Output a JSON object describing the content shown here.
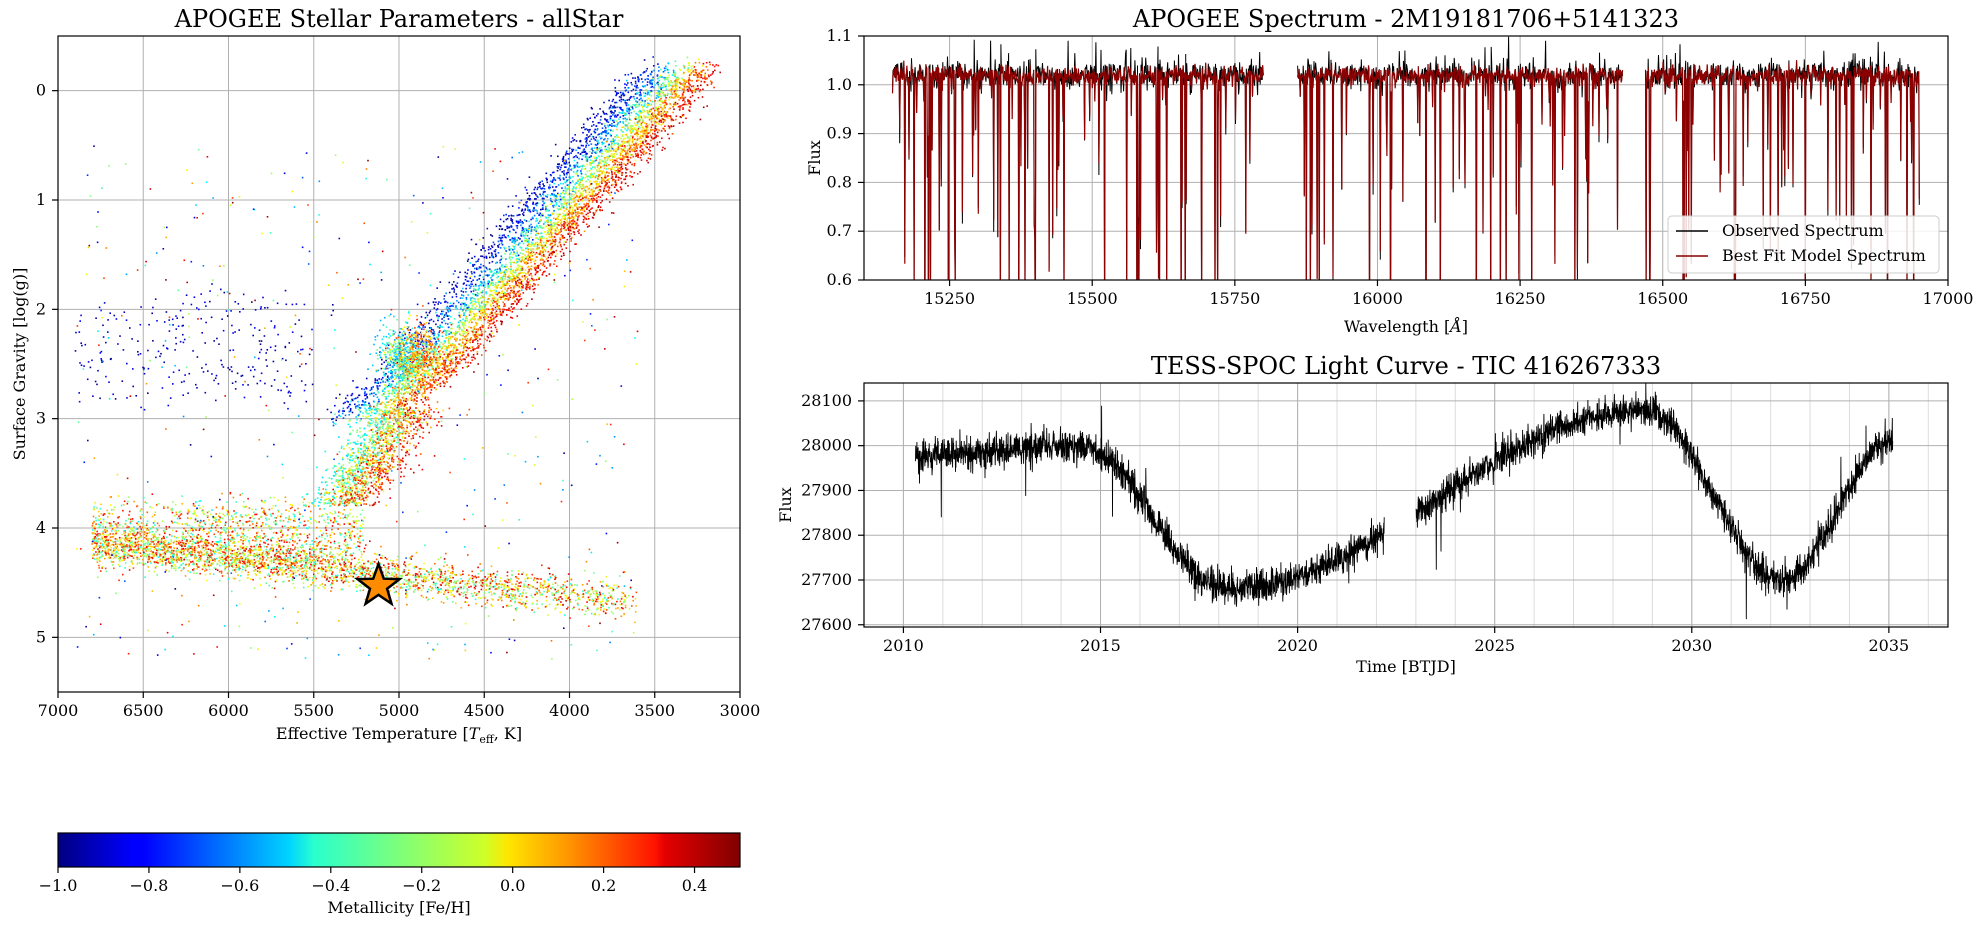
{
  "chart_data": [
    {
      "type": "scatter",
      "title": "APOGEE Stellar Parameters - allStar",
      "xlabel": "Effective Temperature [T_eff, K]",
      "xlabel_parts": {
        "main": "Effective Temperature [",
        "sym": "T",
        "sub": "eff",
        "rest": ", K]"
      },
      "ylabel": "Surface Gravity [log(g)]",
      "xlim": [
        7000,
        3000
      ],
      "ylim": [
        5.5,
        -0.5
      ],
      "xticks": [
        7000,
        6500,
        6000,
        5500,
        5000,
        4500,
        4000,
        3500,
        3000
      ],
      "yticks": [
        0,
        1,
        2,
        3,
        4,
        5
      ],
      "grid": true,
      "color_by": "Metallicity [Fe/H]",
      "populations": [
        {
          "name": "red giant branch",
          "teff_range": [
            5100,
            3150
          ],
          "logg_range": [
            2.5,
            -0.3
          ],
          "feh_range": [
            -1.0,
            0.5
          ]
        },
        {
          "name": "red clump",
          "teff": 5000,
          "logg": 2.4
        },
        {
          "name": "main sequence",
          "teff_range": [
            6800,
            3600
          ],
          "logg_range": [
            4.2,
            4.7
          ]
        },
        {
          "name": "metal-poor horizontal branch",
          "teff_range": [
            7000,
            5500
          ],
          "logg_range": [
            1.9,
            2.8
          ],
          "feh": -0.9
        }
      ],
      "highlight": {
        "marker": "star",
        "color": "#ff8c00",
        "teff": 5120,
        "logg": 4.53
      }
    },
    {
      "type": "colorbar",
      "label": "Metallicity [Fe/H]",
      "colormap": "jet",
      "range": [
        -1.0,
        0.5
      ],
      "ticks": [
        -1.0,
        -0.8,
        -0.6,
        -0.4,
        -0.2,
        0.0,
        0.2,
        0.4
      ],
      "tick_labels": [
        "−1.0",
        "−0.8",
        "−0.6",
        "−0.4",
        "−0.2",
        "0.0",
        "0.2",
        "0.4"
      ]
    },
    {
      "type": "line",
      "title": "APOGEE Spectrum - 2M19181706+5141323",
      "xlabel": "Wavelength [Å]",
      "xlabel_parts": {
        "main": "Wavelength [",
        "sym": "Å",
        "rest": "]"
      },
      "ylabel": "Flux",
      "xlim": [
        15100,
        17000
      ],
      "ylim": [
        0.6,
        1.1
      ],
      "xticks": [
        15250,
        15500,
        15750,
        16000,
        16250,
        16500,
        16750,
        17000
      ],
      "yticks": [
        0.6,
        0.7,
        0.8,
        0.9,
        1.0,
        1.1
      ],
      "y_tick_labels": [
        "0.6",
        "0.7",
        "0.8",
        "0.9",
        "1.0",
        "1.1"
      ],
      "grid": true,
      "chip_segments": [
        [
          15150,
          15800
        ],
        [
          15860,
          16430
        ],
        [
          16470,
          16950
        ]
      ],
      "continuum": 1.02,
      "series": [
        {
          "name": "Observed Spectrum",
          "color": "#000000"
        },
        {
          "name": "Best Fit Model Spectrum",
          "color": "#8b0000"
        }
      ],
      "legend": "lower-right"
    },
    {
      "type": "line",
      "title": "TESS-SPOC Light Curve - TIC 416267333",
      "xlabel": "Time [BTJD]",
      "ylabel": "Flux",
      "xlim": [
        2009,
        2036.5
      ],
      "ylim": [
        27595,
        28140
      ],
      "xticks": [
        2010,
        2015,
        2020,
        2025,
        2030,
        2035
      ],
      "yticks": [
        27600,
        27700,
        27800,
        27900,
        28000,
        28100
      ],
      "grid": true,
      "gap": [
        2022.2,
        2023.0
      ],
      "time_range": [
        2010.3,
        2035.1
      ],
      "flux_range": [
        27625,
        28130
      ],
      "series": [
        {
          "name": "flux",
          "color": "#000000"
        }
      ],
      "extrema": [
        {
          "time": 2014.5,
          "flux": 28000
        },
        {
          "time": 2018.2,
          "flux": 27680
        },
        {
          "time": 2028.8,
          "flux": 28080
        },
        {
          "time": 2032.3,
          "flux": 27700
        }
      ]
    }
  ]
}
